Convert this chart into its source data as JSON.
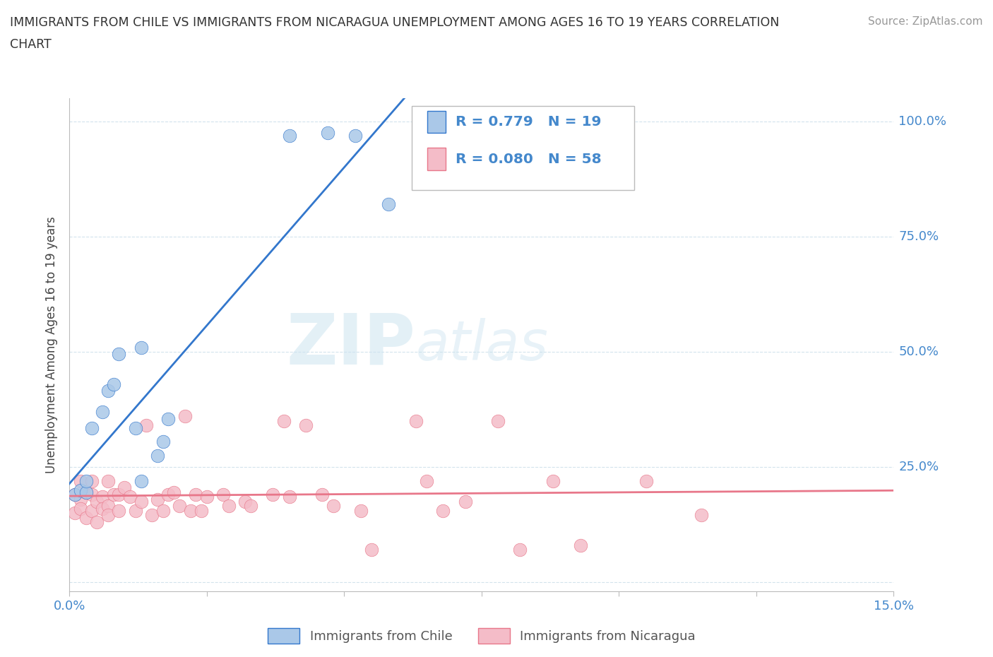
{
  "title_line1": "IMMIGRANTS FROM CHILE VS IMMIGRANTS FROM NICARAGUA UNEMPLOYMENT AMONG AGES 16 TO 19 YEARS CORRELATION",
  "title_line2": "CHART",
  "source": "Source: ZipAtlas.com",
  "ylabel": "Unemployment Among Ages 16 to 19 years",
  "xlim": [
    0.0,
    0.15
  ],
  "ylim": [
    -0.02,
    1.05
  ],
  "chile_color": "#aac8e8",
  "nicaragua_color": "#f4bcc8",
  "chile_line_color": "#3377cc",
  "nicaragua_line_color": "#e8778a",
  "R_chile": 0.779,
  "N_chile": 19,
  "R_nicaragua": 0.08,
  "N_nicaragua": 58,
  "legend_chile": "Immigrants from Chile",
  "legend_nicaragua": "Immigrants from Nicaragua",
  "watermark_zip": "ZIP",
  "watermark_atlas": "atlas",
  "chile_x": [
    0.001,
    0.002,
    0.003,
    0.003,
    0.004,
    0.006,
    0.007,
    0.008,
    0.009,
    0.012,
    0.013,
    0.013,
    0.016,
    0.017,
    0.018,
    0.04,
    0.047,
    0.052,
    0.058
  ],
  "chile_y": [
    0.19,
    0.2,
    0.195,
    0.22,
    0.335,
    0.37,
    0.415,
    0.43,
    0.495,
    0.335,
    0.51,
    0.22,
    0.275,
    0.305,
    0.355,
    0.97,
    0.975,
    0.97,
    0.82
  ],
  "nicaragua_x": [
    0.001,
    0.001,
    0.002,
    0.002,
    0.002,
    0.003,
    0.003,
    0.004,
    0.004,
    0.004,
    0.005,
    0.005,
    0.006,
    0.006,
    0.007,
    0.007,
    0.007,
    0.008,
    0.009,
    0.009,
    0.01,
    0.011,
    0.012,
    0.013,
    0.014,
    0.015,
    0.016,
    0.017,
    0.018,
    0.019,
    0.02,
    0.021,
    0.022,
    0.023,
    0.024,
    0.025,
    0.028,
    0.029,
    0.032,
    0.033,
    0.037,
    0.039,
    0.04,
    0.043,
    0.046,
    0.048,
    0.053,
    0.055,
    0.063,
    0.065,
    0.068,
    0.072,
    0.078,
    0.082,
    0.088,
    0.093,
    0.105,
    0.115
  ],
  "nicaragua_y": [
    0.19,
    0.15,
    0.18,
    0.16,
    0.22,
    0.195,
    0.14,
    0.19,
    0.155,
    0.22,
    0.175,
    0.13,
    0.185,
    0.16,
    0.165,
    0.22,
    0.145,
    0.19,
    0.19,
    0.155,
    0.205,
    0.185,
    0.155,
    0.175,
    0.34,
    0.145,
    0.18,
    0.155,
    0.19,
    0.195,
    0.165,
    0.36,
    0.155,
    0.19,
    0.155,
    0.185,
    0.19,
    0.165,
    0.175,
    0.165,
    0.19,
    0.35,
    0.185,
    0.34,
    0.19,
    0.165,
    0.155,
    0.07,
    0.35,
    0.22,
    0.155,
    0.175,
    0.35,
    0.07,
    0.22,
    0.08,
    0.22,
    0.145
  ]
}
